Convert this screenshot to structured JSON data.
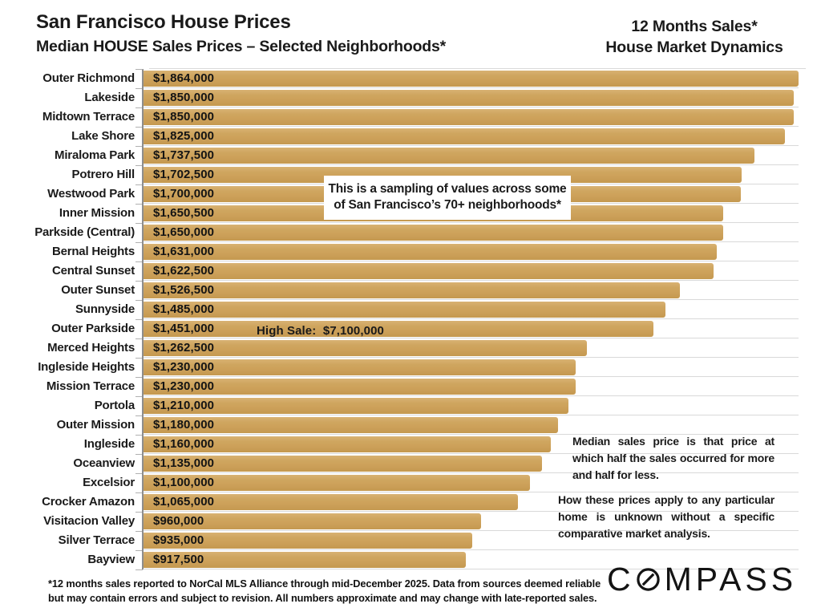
{
  "header": {
    "title": "San Francisco House Prices",
    "subtitle": "Median HOUSE Sales Prices – Selected Neighborhoods*",
    "right_line1": "12 Months Sales*",
    "right_line2": "House Market Dynamics"
  },
  "chart_data": {
    "type": "bar",
    "orientation": "horizontal",
    "title": "San Francisco House Prices",
    "subtitle": "Median HOUSE Sales Prices – Selected Neighborhoods*",
    "xlim": [
      0,
      1864000
    ],
    "grid": "light gray row separator lines, dark gray vertical baseline axis with tick marks",
    "bar_color": "#CDA15A",
    "value_label_position": "inside-left",
    "categories": [
      "Outer Richmond",
      "Lakeside",
      "Midtown Terrace",
      "Lake Shore",
      "Miraloma Park",
      "Potrero Hill",
      "Westwood Park",
      "Inner Mission",
      "Parkside (Central)",
      "Bernal Heights",
      "Central Sunset",
      "Outer Sunset",
      "Sunnyside",
      "Outer Parkside",
      "Merced Heights",
      "Ingleside Heights",
      "Mission Terrace",
      "Portola",
      "Outer Mission",
      "Ingleside",
      "Oceanview",
      "Excelsior",
      "Crocker Amazon",
      "Visitacion Valley",
      "Silver Terrace",
      "Bayview"
    ],
    "values": [
      1864000,
      1850000,
      1850000,
      1825000,
      1737500,
      1702500,
      1700000,
      1650500,
      1650000,
      1631000,
      1622500,
      1526500,
      1485000,
      1451000,
      1262500,
      1230000,
      1230000,
      1210000,
      1180000,
      1160000,
      1135000,
      1100000,
      1065000,
      960000,
      935000,
      917500
    ],
    "value_labels": [
      "$1,864,000",
      "$1,850,000",
      "$1,850,000",
      "$1,825,000",
      "$1,737,500",
      "$1,702,500",
      "$1,700,000",
      "$1,650,500",
      "$1,650,000",
      "$1,631,000",
      "$1,622,500",
      "$1,526,500",
      "$1,485,000",
      "$1,451,000",
      "$1,262,500",
      "$1,230,000",
      "$1,230,000",
      "$1,210,000",
      "$1,180,000",
      "$1,160,000",
      "$1,135,000",
      "$1,100,000",
      "$1,065,000",
      "$960,000",
      "$935,000",
      "$917,500"
    ]
  },
  "annotations": {
    "sampling_line1": "This is a sampling of values across some",
    "sampling_line2": "of San Francisco’s 70+ neighborhoods*",
    "high_sale": "High Sale:  $7,100,000",
    "median_note": "Median sales price is that price at which half the sales occurred for more and half for less.",
    "analysis_note": "How these prices apply to any particular home is unknown without a specific comparative market analysis."
  },
  "footer": {
    "line1": "*12 months sales reported to NorCal MLS Alliance through mid-December 2025. Data from sources deemed reliable",
    "line2": "but may contain errors and subject to revision. All numbers approximate and may change with late-reported sales.",
    "logo_prefix": "C",
    "logo_suffix": "MPASS"
  }
}
